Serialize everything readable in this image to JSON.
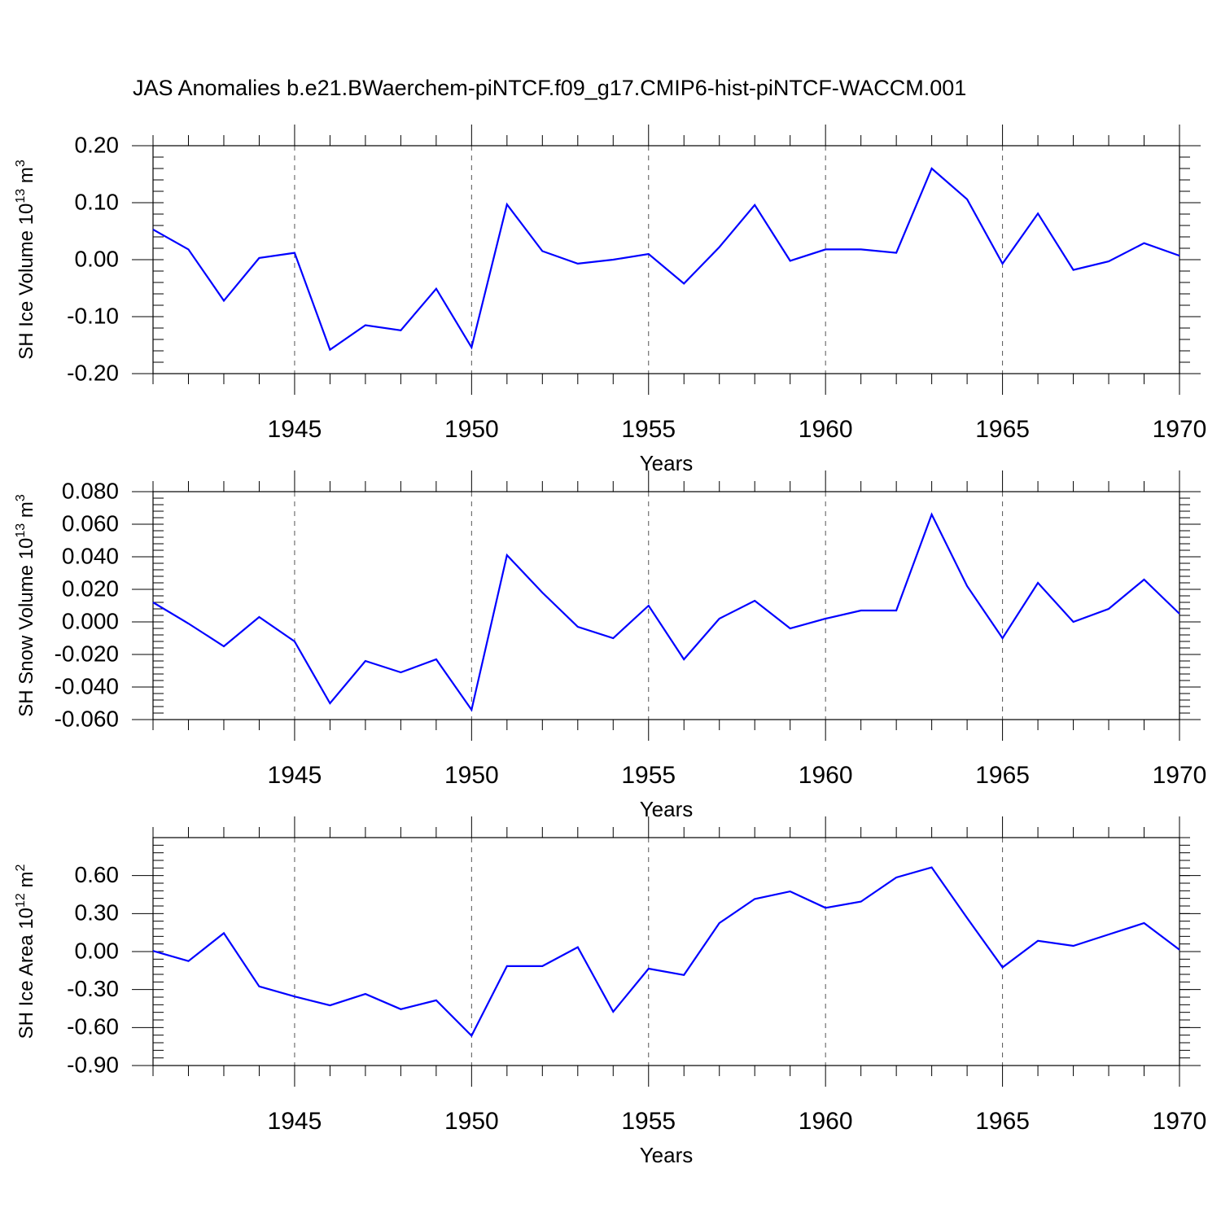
{
  "title": "JAS Anomalies b.e21.BWaerchem-piNTCF.f09_g17.CMIP6-hist-piNTCF-WACCM.001",
  "chart_data": [
    {
      "type": "line",
      "ylabel": {
        "text": "SH Ice Volume 10",
        "sup": "13",
        "unit": "m",
        "unit_sup": "3"
      },
      "xlabel": "Years",
      "xlim": [
        1941,
        1970
      ],
      "ylim": [
        -0.2,
        0.2
      ],
      "yticks": [
        -0.2,
        -0.1,
        0.0,
        0.1,
        0.2
      ],
      "yticklabels": [
        "-0.20",
        "-0.10",
        "0.00",
        "0.10",
        "0.20"
      ],
      "yminor_step": 0.02,
      "xticks": [
        1945,
        1950,
        1955,
        1960,
        1965,
        1970
      ],
      "xticklabels": [
        "1945",
        "1950",
        "1955",
        "1960",
        "1965",
        "1970"
      ],
      "grid": "vertical dashed at major x ticks",
      "series": [
        {
          "name": "SH Ice Volume",
          "color": "#0000ff",
          "x": [
            1941,
            1942,
            1943,
            1944,
            1945,
            1946,
            1947,
            1948,
            1949,
            1950,
            1951,
            1952,
            1953,
            1954,
            1955,
            1956,
            1957,
            1958,
            1959,
            1960,
            1961,
            1962,
            1963,
            1964,
            1965,
            1966,
            1967,
            1968,
            1969,
            1970
          ],
          "values": [
            0.053,
            0.018,
            -0.072,
            0.003,
            0.012,
            -0.158,
            -0.115,
            -0.124,
            -0.051,
            -0.154,
            0.097,
            0.015,
            -0.007,
            0.0,
            0.01,
            -0.042,
            0.022,
            0.096,
            -0.002,
            0.018,
            0.018,
            0.012,
            0.16,
            0.106,
            -0.007,
            0.081,
            -0.018,
            -0.003,
            0.029,
            0.007
          ]
        }
      ]
    },
    {
      "type": "line",
      "ylabel": {
        "text": "SH Snow Volume 10",
        "sup": "13",
        "unit": "m",
        "unit_sup": "3"
      },
      "xlabel": "Years",
      "xlim": [
        1941,
        1970
      ],
      "ylim": [
        -0.06,
        0.08
      ],
      "yticks": [
        -0.06,
        -0.04,
        -0.02,
        0.0,
        0.02,
        0.04,
        0.06,
        0.08
      ],
      "yticklabels": [
        "-0.060",
        "-0.040",
        "-0.020",
        "0.000",
        "0.020",
        "0.040",
        "0.060",
        "0.080"
      ],
      "yminor_step": 0.004,
      "xticks": [
        1945,
        1950,
        1955,
        1960,
        1965,
        1970
      ],
      "xticklabels": [
        "1945",
        "1950",
        "1955",
        "1960",
        "1965",
        "1970"
      ],
      "grid": "vertical dashed at major x ticks",
      "series": [
        {
          "name": "SH Snow Volume",
          "color": "#0000ff",
          "x": [
            1941,
            1942,
            1943,
            1944,
            1945,
            1946,
            1947,
            1948,
            1949,
            1950,
            1951,
            1952,
            1953,
            1954,
            1955,
            1956,
            1957,
            1958,
            1959,
            1960,
            1961,
            1962,
            1963,
            1964,
            1965,
            1966,
            1967,
            1968,
            1969,
            1970
          ],
          "values": [
            0.012,
            -0.001,
            -0.015,
            0.003,
            -0.012,
            -0.05,
            -0.024,
            -0.031,
            -0.023,
            -0.054,
            0.041,
            0.018,
            -0.003,
            -0.01,
            0.01,
            -0.023,
            0.002,
            0.013,
            -0.004,
            0.002,
            0.007,
            0.007,
            0.066,
            0.022,
            -0.01,
            0.024,
            0.0,
            0.008,
            0.026,
            0.005
          ]
        }
      ]
    },
    {
      "type": "line",
      "ylabel": {
        "text": "SH Ice Area 10",
        "sup": "12",
        "unit": "m",
        "unit_sup": "2"
      },
      "xlabel": "Years",
      "xlim": [
        1941,
        1970
      ],
      "ylim": [
        -0.9,
        0.9
      ],
      "yticks": [
        -0.9,
        -0.6,
        -0.3,
        0.0,
        0.3,
        0.6
      ],
      "yticklabels": [
        "-0.90",
        "-0.60",
        "-0.30",
        "0.00",
        "0.30",
        "0.60"
      ],
      "yminor_step": 0.06,
      "xticks": [
        1945,
        1950,
        1955,
        1960,
        1965,
        1970
      ],
      "xticklabels": [
        "1945",
        "1950",
        "1955",
        "1960",
        "1965",
        "1970"
      ],
      "grid": "vertical dashed at major x ticks",
      "series": [
        {
          "name": "SH Ice Area",
          "color": "#0000ff",
          "x": [
            1941,
            1942,
            1943,
            1944,
            1945,
            1946,
            1947,
            1948,
            1949,
            1950,
            1951,
            1952,
            1953,
            1954,
            1955,
            1956,
            1957,
            1958,
            1959,
            1960,
            1961,
            1962,
            1963,
            1964,
            1965,
            1966,
            1967,
            1968,
            1969,
            1970
          ],
          "values": [
            0.005,
            -0.075,
            0.145,
            -0.275,
            -0.355,
            -0.425,
            -0.335,
            -0.455,
            -0.385,
            -0.665,
            -0.115,
            -0.115,
            0.035,
            -0.475,
            -0.135,
            -0.185,
            0.225,
            0.415,
            0.475,
            0.345,
            0.395,
            0.585,
            0.665,
            0.265,
            -0.125,
            0.085,
            0.045,
            0.135,
            0.225,
            0.015
          ]
        }
      ]
    }
  ]
}
